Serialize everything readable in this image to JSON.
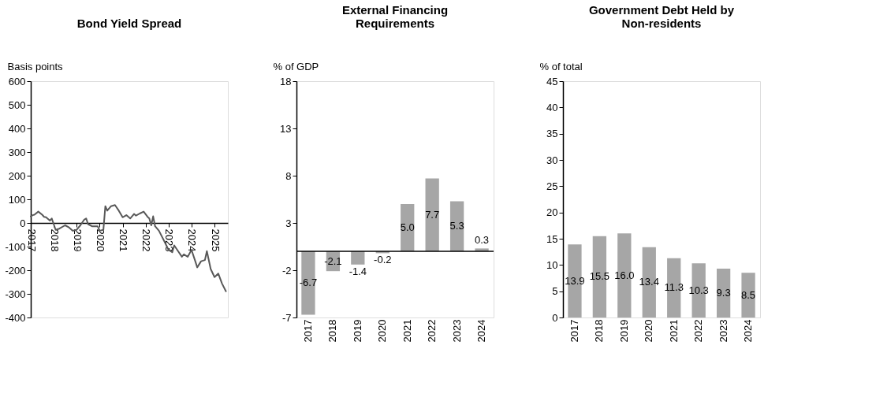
{
  "chart_data": [
    {
      "type": "line",
      "title": "Bond Yield Spread",
      "ylabel": "Basis points",
      "grid": false,
      "marker": "none",
      "line_style": "solid",
      "x": [
        "2017-01",
        "2017-02",
        "2017-03",
        "2017-05",
        "2017-07",
        "2017-08",
        "2017-09",
        "2017-11",
        "2017-12",
        "2018-02",
        "2018-04",
        "2018-07",
        "2018-09",
        "2018-11",
        "2019-01",
        "2019-03",
        "2019-05",
        "2019-06",
        "2019-07",
        "2019-09",
        "2019-12",
        "2020-01",
        "2020-03",
        "2020-04",
        "2020-05",
        "2020-07",
        "2020-09",
        "2020-11",
        "2021-01",
        "2021-03",
        "2021-05",
        "2021-07",
        "2021-08",
        "2021-10",
        "2021-12",
        "2022-02",
        "2022-03",
        "2022-04",
        "2022-05",
        "2022-06",
        "2022-08",
        "2022-11",
        "2023-01",
        "2023-03",
        "2023-04",
        "2023-06",
        "2023-08",
        "2023-09",
        "2023-11",
        "2024-01",
        "2024-03",
        "2024-04",
        "2024-06",
        "2024-08",
        "2024-09",
        "2024-11",
        "2025-01",
        "2025-03",
        "2025-05",
        "2025-07"
      ],
      "series": [
        {
          "color": "#595959",
          "values": [
            28,
            33,
            35,
            48,
            35,
            26,
            24,
            10,
            19,
            -29,
            -24,
            -10,
            -19,
            -33,
            -29,
            -10,
            14,
            19,
            -5,
            -14,
            -14,
            -33,
            -29,
            71,
            52,
            71,
            76,
            52,
            24,
            33,
            19,
            38,
            31,
            40,
            48,
            26,
            19,
            -10,
            28,
            -14,
            -33,
            -81,
            -114,
            -124,
            -95,
            -119,
            -143,
            -133,
            -143,
            -114,
            -162,
            -188,
            -162,
            -157,
            -119,
            -195,
            -229,
            -214,
            -257,
            -289
          ]
        }
      ],
      "xlim": [
        "2017-01",
        "2025-08"
      ],
      "xticks": [
        "2017",
        "2018",
        "2019",
        "2020",
        "2021",
        "2022",
        "2023",
        "2024",
        "2025"
      ],
      "ylim": [
        -400,
        600
      ],
      "yticks": [
        -400,
        -300,
        -200,
        -100,
        0,
        100,
        200,
        300,
        400,
        500,
        600
      ]
    },
    {
      "type": "bar",
      "title": "External Financing Requirements",
      "ylabel": "% of GDP",
      "grid": false,
      "data_labels": true,
      "categories": [
        "2017",
        "2018",
        "2019",
        "2020",
        "2021",
        "2022",
        "2023",
        "2024"
      ],
      "series": [
        {
          "color": "#a6a6a6",
          "values": [
            -6.7,
            -2.1,
            -1.4,
            -0.2,
            5.0,
            7.7,
            5.3,
            0.3
          ],
          "value_labels": [
            "-6.7",
            "-2.1",
            "-1.4",
            "-0.2",
            "5.0",
            "7.7",
            "5.3",
            "0.3"
          ]
        }
      ],
      "ylim": [
        -7,
        18
      ],
      "yticks": [
        -7,
        -2,
        3,
        8,
        13,
        18
      ]
    },
    {
      "type": "bar",
      "title": "Government Debt Held by Non-residents",
      "ylabel": "% of total",
      "grid": false,
      "data_labels": true,
      "categories": [
        "2017",
        "2018",
        "2019",
        "2020",
        "2021",
        "2022",
        "2023",
        "2024"
      ],
      "series": [
        {
          "color": "#a6a6a6",
          "values": [
            13.9,
            15.5,
            16.0,
            13.4,
            11.3,
            10.3,
            9.3,
            8.5
          ],
          "value_labels": [
            "13.9",
            "15.5",
            "16.0",
            "13.4",
            "11.3",
            "10.3",
            "9.3",
            "8.5"
          ]
        }
      ],
      "ylim": [
        0,
        45
      ],
      "yticks": [
        0,
        5,
        10,
        15,
        20,
        25,
        30,
        35,
        40,
        45
      ]
    }
  ]
}
